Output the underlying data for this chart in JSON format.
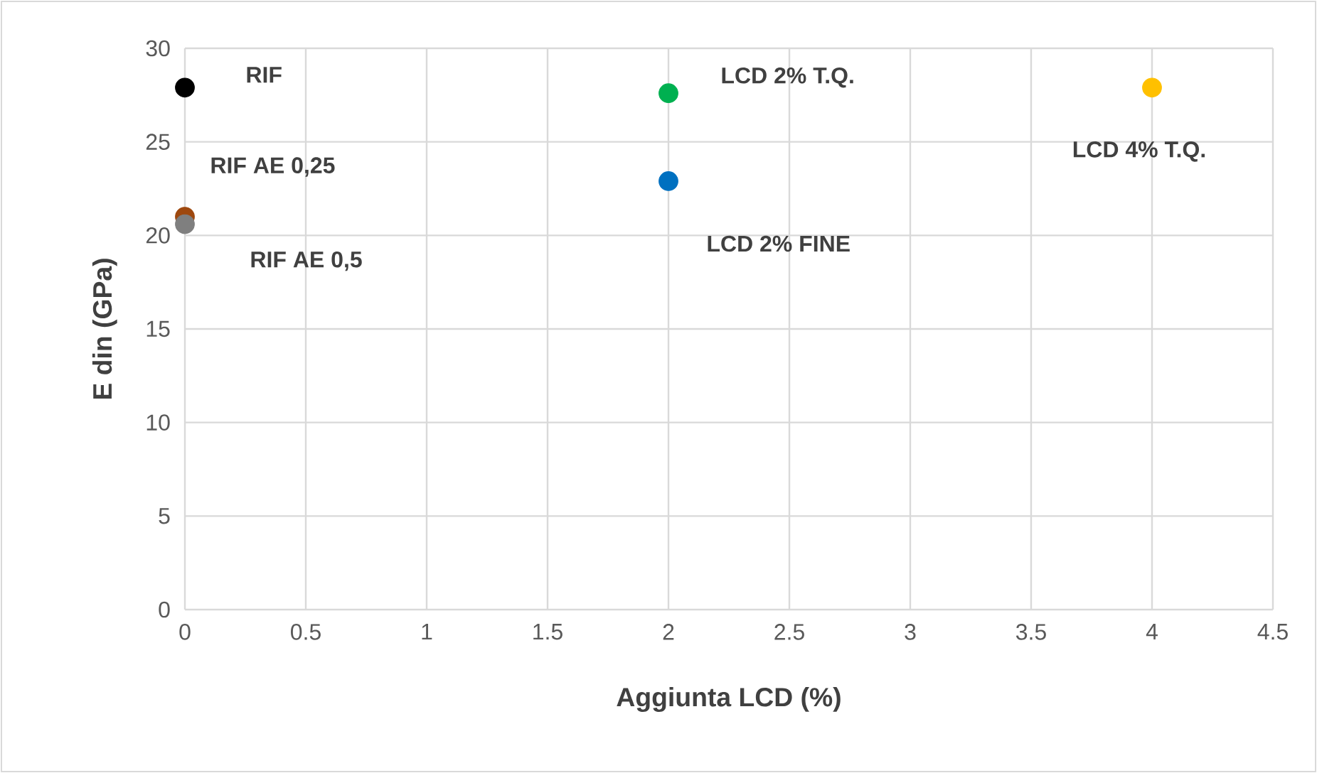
{
  "chart_data": {
    "type": "scatter",
    "xlabel": "Aggiunta LCD (%)",
    "ylabel": "E din (GPa)",
    "series": [
      {
        "name": "RIF",
        "color": "#000000",
        "x": [
          0
        ],
        "values": [
          27.9
        ]
      },
      {
        "name": "RIF AE 0,25",
        "color": "#9e480e",
        "x": [
          0
        ],
        "values": [
          21.0
        ]
      },
      {
        "name": "RIF AE 0,5",
        "color": "#7f7f7f",
        "x": [
          0
        ],
        "values": [
          20.6
        ]
      },
      {
        "name": "LCD 2% FINE",
        "color": "#0070c0",
        "x": [
          2
        ],
        "values": [
          22.9
        ]
      },
      {
        "name": "LCD 2% T.Q.",
        "color": "#00b050",
        "x": [
          2
        ],
        "values": [
          27.6
        ]
      },
      {
        "name": "LCD 4% T.Q.",
        "color": "#ffc000",
        "x": [
          4
        ],
        "values": [
          27.9
        ]
      }
    ],
    "xlim": [
      0,
      4.5
    ],
    "xticks": [
      0,
      0.5,
      1,
      1.5,
      2,
      2.5,
      3,
      3.5,
      4,
      4.5
    ],
    "ylim": [
      0,
      30
    ],
    "yticks": [
      0,
      5,
      10,
      15,
      20,
      25,
      30
    ],
    "grid": true
  }
}
